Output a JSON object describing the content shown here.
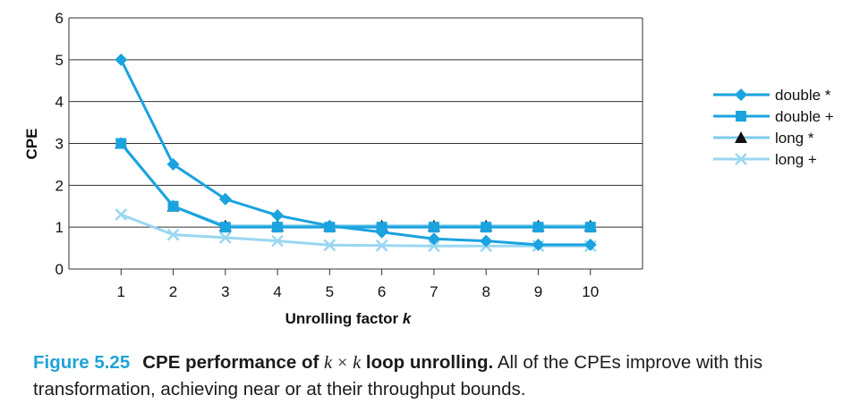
{
  "chart_data": {
    "type": "line",
    "x": [
      1,
      2,
      3,
      4,
      5,
      6,
      7,
      8,
      9,
      10
    ],
    "xlabel": "Unrolling factor",
    "xlabel_var": "k",
    "ylabel": "CPE",
    "xlim": [
      0,
      11
    ],
    "ylim": [
      0,
      6
    ],
    "yticks": [
      0,
      1,
      2,
      3,
      4,
      5,
      6
    ],
    "xticks": [
      1,
      2,
      3,
      4,
      5,
      6,
      7,
      8,
      9,
      10
    ],
    "grid": "horizontal",
    "legend_position": "right",
    "series": [
      {
        "name": "double *",
        "marker": "diamond",
        "color": "#1aa3df",
        "values": [
          5.0,
          2.5,
          1.67,
          1.28,
          1.03,
          0.88,
          0.72,
          0.67,
          0.58,
          0.58
        ]
      },
      {
        "name": "double +",
        "marker": "square",
        "color": "#1aa3df",
        "values": [
          3.0,
          1.5,
          1.0,
          1.0,
          1.0,
          1.0,
          1.0,
          1.0,
          1.0,
          1.0
        ]
      },
      {
        "name": "long *",
        "marker": "triangle",
        "color": "#7fcbea",
        "values": [
          3.0,
          1.5,
          1.03,
          1.03,
          1.03,
          1.03,
          1.03,
          1.03,
          1.03,
          1.03
        ]
      },
      {
        "name": "long +",
        "marker": "x",
        "color": "#9ad7f0",
        "values": [
          1.3,
          0.82,
          0.75,
          0.67,
          0.57,
          0.56,
          0.55,
          0.55,
          0.55,
          0.55
        ]
      }
    ]
  },
  "caption": {
    "number": "Figure 5.25",
    "title_pre": "CPE performance of",
    "title_k1": "k",
    "title_times": "×",
    "title_k2": "k",
    "title_post": "loop unrolling.",
    "body": "All of the CPEs improve with this transformation, achieving near or at their throughput bounds."
  }
}
